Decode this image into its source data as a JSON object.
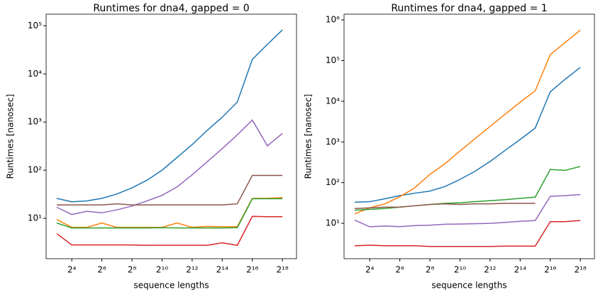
{
  "chart_data": [
    {
      "type": "line",
      "title": "Runtimes for dna4, gapped = 0",
      "xlabel": "sequence lengths",
      "ylabel": "Runtimes [nanosec]",
      "xscale": "log",
      "yscale": "log",
      "grid": false,
      "x": [
        8,
        16,
        32,
        64,
        128,
        256,
        512,
        1024,
        2048,
        4096,
        8192,
        16384,
        32768,
        65536,
        131072,
        262144
      ],
      "xlim": [
        4.9,
        502000
      ],
      "ylim": [
        1.45,
        174000
      ],
      "xticks": [
        {
          "value": 16,
          "label": "2⁴"
        },
        {
          "value": 64,
          "label": "2⁶"
        },
        {
          "value": 256,
          "label": "2⁸"
        },
        {
          "value": 1024,
          "label": "2¹⁰"
        },
        {
          "value": 4096,
          "label": "2¹²"
        },
        {
          "value": 16384,
          "label": "2¹⁴"
        },
        {
          "value": 65536,
          "label": "2¹⁶"
        },
        {
          "value": 262144,
          "label": "2¹⁸"
        }
      ],
      "yticks": [
        {
          "value": 10,
          "label": "10¹"
        },
        {
          "value": 100,
          "label": "10²"
        },
        {
          "value": 1000,
          "label": "10³"
        },
        {
          "value": 10000,
          "label": "10⁴"
        },
        {
          "value": 100000,
          "label": "10⁵"
        }
      ],
      "series": [
        {
          "color": "#1f77b4",
          "values": [
            26,
            22,
            23,
            26,
            32,
            43,
            62,
            100,
            184,
            340,
            670,
            1260,
            2600,
            20000,
            41000,
            82000
          ]
        },
        {
          "color": "#ff7f0e",
          "values": [
            9.5,
            6.5,
            6.5,
            8,
            6.5,
            6.5,
            6.5,
            6.5,
            8,
            6.5,
            6.8,
            6.7,
            6.7,
            26,
            26,
            27
          ]
        },
        {
          "color": "#2ca02c",
          "values": [
            8,
            6.3,
            6.3,
            6.3,
            6.3,
            6.3,
            6.3,
            6.4,
            6.3,
            6.3,
            6.3,
            6.3,
            6.4,
            25.5,
            25.5,
            25.5
          ]
        },
        {
          "color": "#d62728",
          "values": [
            4.8,
            2.8,
            2.8,
            2.8,
            2.8,
            2.8,
            2.75,
            2.75,
            2.75,
            2.75,
            2.75,
            3.1,
            2.75,
            11,
            10.8,
            10.8
          ]
        },
        {
          "color": "#9467bd",
          "values": [
            17,
            12,
            14,
            13,
            15,
            18,
            23,
            30,
            45,
            80,
            150,
            280,
            540,
            1100,
            320,
            580
          ]
        },
        {
          "color": "#8c564b",
          "values": [
            19,
            19,
            19,
            19,
            20,
            19,
            19,
            19,
            19,
            19,
            19,
            19,
            20,
            78,
            78,
            78
          ]
        }
      ]
    },
    {
      "type": "line",
      "title": "Runtimes for dna4, gapped = 1",
      "xlabel": "sequence lengths",
      "ylabel": "Runtimes [nanosec]",
      "xscale": "log",
      "yscale": "log",
      "grid": false,
      "x": [
        8,
        16,
        32,
        64,
        128,
        256,
        512,
        1024,
        2048,
        4096,
        8192,
        16384,
        32768,
        65536,
        131072,
        262144
      ],
      "xlim": [
        4.9,
        502000
      ],
      "ylim": [
        1.35,
        1380000
      ],
      "xticks": [
        {
          "value": 16,
          "label": "2⁴"
        },
        {
          "value": 64,
          "label": "2⁶"
        },
        {
          "value": 256,
          "label": "2⁸"
        },
        {
          "value": 1024,
          "label": "2¹⁰"
        },
        {
          "value": 4096,
          "label": "2¹²"
        },
        {
          "value": 16384,
          "label": "2¹⁴"
        },
        {
          "value": 65536,
          "label": "2¹⁶"
        },
        {
          "value": 262144,
          "label": "2¹⁸"
        }
      ],
      "yticks": [
        {
          "value": 10,
          "label": "10¹"
        },
        {
          "value": 100,
          "label": "10²"
        },
        {
          "value": 1000,
          "label": "10³"
        },
        {
          "value": 10000,
          "label": "10⁴"
        },
        {
          "value": 100000,
          "label": "10⁵"
        },
        {
          "value": 1000000,
          "label": "10⁶"
        }
      ],
      "series": [
        {
          "color": "#1f77b4",
          "values": [
            33,
            34,
            40,
            48,
            55,
            62,
            80,
            120,
            190,
            330,
            620,
            1150,
            2200,
            17000,
            35000,
            68000
          ]
        },
        {
          "color": "#ff7f0e",
          "values": [
            17,
            24,
            30,
            45,
            75,
            160,
            290,
            600,
            1200,
            2400,
            4800,
            9500,
            18000,
            140000,
            280000,
            560000
          ]
        },
        {
          "color": "#2ca02c",
          "values": [
            21,
            22,
            23,
            25,
            27,
            29,
            31,
            32,
            34,
            36,
            38,
            41,
            44,
            210,
            200,
            250
          ]
        },
        {
          "color": "#d62728",
          "values": [
            2.8,
            2.9,
            2.8,
            2.8,
            2.8,
            2.7,
            2.7,
            2.7,
            2.7,
            2.7,
            2.75,
            2.75,
            2.75,
            11,
            11,
            11.7
          ]
        },
        {
          "color": "#9467bd",
          "values": [
            12,
            8.2,
            8.6,
            8.3,
            8.8,
            9,
            9.5,
            9.6,
            9.8,
            10,
            10.5,
            11.2,
            11.7,
            46,
            48,
            51
          ]
        },
        {
          "color": "#8c564b",
          "values": [
            23,
            24,
            25,
            25,
            27,
            29,
            30,
            29,
            30,
            30,
            31,
            31,
            31,
            null,
            null,
            null
          ]
        }
      ]
    }
  ]
}
